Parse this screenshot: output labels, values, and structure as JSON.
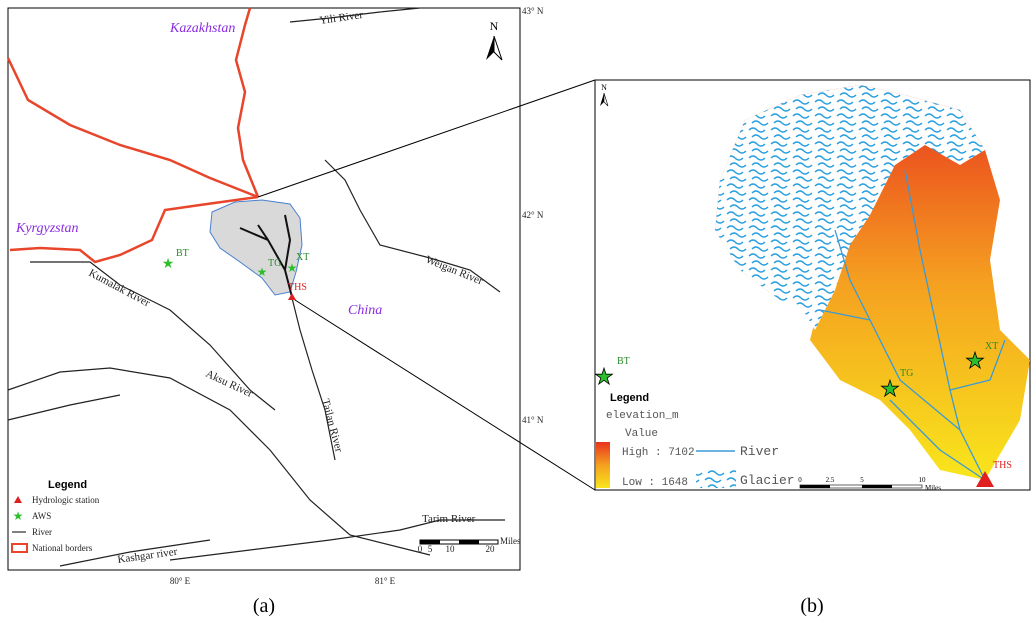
{
  "panel_a": {
    "country_labels": [
      "Kazakhstan",
      "Kyrgyzstan",
      "China"
    ],
    "river_labels": [
      "Yili River",
      "Weigan River",
      "Kumalak River",
      "Aksu River",
      "Tailan River",
      "Tarim River",
      "Kashgar river"
    ],
    "station_labels": [
      "BT",
      "TG",
      "XT",
      "THS"
    ],
    "lat_labels": [
      "43°  N",
      "42°  N",
      "41°  N"
    ],
    "lon_labels": [
      "80°  E",
      "81°  E"
    ],
    "north": "N",
    "legend": {
      "title": "Legend",
      "items": [
        "Hydrologic station",
        "AWS",
        "River",
        "National borders"
      ]
    },
    "scale": {
      "ticks": [
        "0",
        "5",
        "10",
        "20"
      ],
      "unit": "Miles"
    },
    "caption": "(a)"
  },
  "panel_b": {
    "north": "N",
    "station_labels": [
      "BT",
      "TG",
      "XT",
      "THS"
    ],
    "legend": {
      "title": "Legend",
      "field": "elevation_m",
      "value": "Value",
      "high": "High : 7102",
      "low": "Low : 1648",
      "river": "River",
      "glacier": "Glacier"
    },
    "scale": {
      "ticks": [
        "0",
        "2.5",
        "5",
        "10"
      ],
      "unit": "Miles"
    },
    "caption": "(b)"
  }
}
